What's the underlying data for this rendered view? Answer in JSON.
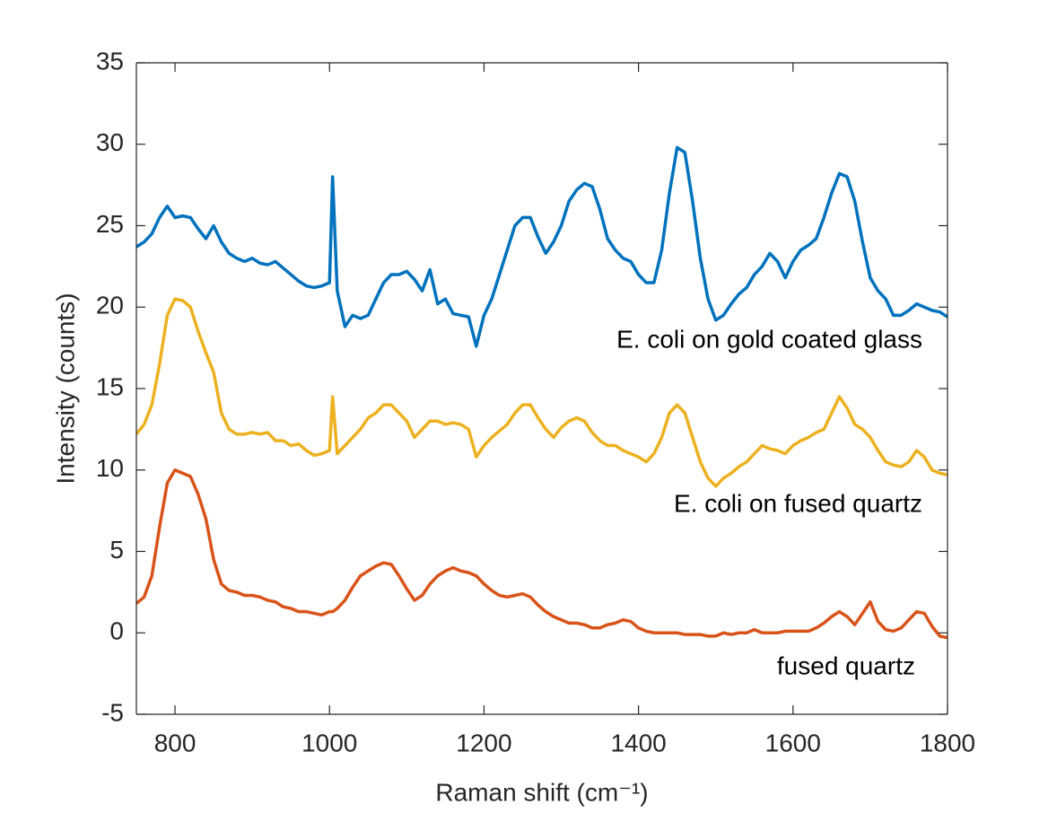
{
  "chart_data": {
    "type": "line",
    "xlabel": "Raman shift (cm⁻¹)",
    "ylabel": "Intensity (counts)",
    "annotations": [
      "E. coli on gold coated glass",
      "E. coli on fused quartz",
      "fused quartz"
    ],
    "xlim": [
      750,
      1800
    ],
    "xticks": [
      800,
      1000,
      1200,
      1400,
      1600,
      1800
    ],
    "ylim": [
      -5,
      35
    ],
    "yticks": [
      -5,
      0,
      5,
      10,
      15,
      20,
      25,
      30,
      35
    ],
    "box": true,
    "x": [
      750,
      760,
      770,
      780,
      790,
      800,
      810,
      820,
      830,
      840,
      850,
      860,
      870,
      880,
      890,
      900,
      910,
      920,
      930,
      940,
      950,
      960,
      970,
      980,
      990,
      1000,
      1004,
      1010,
      1020,
      1030,
      1040,
      1050,
      1060,
      1070,
      1080,
      1090,
      1100,
      1110,
      1120,
      1130,
      1140,
      1150,
      1160,
      1170,
      1180,
      1190,
      1200,
      1210,
      1220,
      1230,
      1240,
      1250,
      1260,
      1270,
      1280,
      1290,
      1300,
      1310,
      1320,
      1330,
      1340,
      1350,
      1360,
      1370,
      1380,
      1390,
      1400,
      1410,
      1420,
      1430,
      1440,
      1450,
      1460,
      1470,
      1480,
      1490,
      1500,
      1510,
      1520,
      1530,
      1540,
      1550,
      1560,
      1570,
      1580,
      1590,
      1600,
      1610,
      1620,
      1630,
      1640,
      1650,
      1660,
      1670,
      1680,
      1690,
      1700,
      1710,
      1720,
      1730,
      1740,
      1750,
      1760,
      1770,
      1780,
      1790,
      1800
    ],
    "series": [
      {
        "color": "#0072bd",
        "values": [
          23.7,
          24,
          24.5,
          25.5,
          26.2,
          25.5,
          25.6,
          25.5,
          24.8,
          24.2,
          25,
          24,
          23.3,
          23,
          22.8,
          23,
          22.7,
          22.6,
          22.8,
          22.4,
          22,
          21.6,
          21.3,
          21.2,
          21.3,
          21.5,
          28,
          21,
          18.8,
          19.5,
          19.3,
          19.5,
          20.5,
          21.5,
          22,
          22,
          22.2,
          21.7,
          21,
          22.3,
          20.2,
          20.5,
          19.6,
          19.5,
          19.4,
          17.6,
          19.5,
          20.5,
          22,
          23.5,
          25,
          25.5,
          25.5,
          24.3,
          23.3,
          24,
          25,
          26.5,
          27.2,
          27.6,
          27.4,
          26,
          24.2,
          23.5,
          23,
          22.8,
          22,
          21.5,
          21.5,
          23.5,
          27,
          29.8,
          29.5,
          26.5,
          23,
          20.5,
          19.2,
          19.5,
          20.2,
          20.8,
          21.2,
          22,
          22.5,
          23.3,
          22.8,
          21.8,
          22.8,
          23.5,
          23.8,
          24.2,
          25.5,
          27,
          28.2,
          28,
          26.5,
          24,
          21.8,
          21,
          20.5,
          19.5,
          19.5,
          19.8,
          20.2,
          20,
          19.8,
          19.7,
          19.4
        ]
      },
      {
        "color": "#edb120",
        "values": [
          12.2,
          12.8,
          14,
          16.5,
          19.5,
          20.5,
          20.4,
          20,
          18.5,
          17.2,
          16,
          13.5,
          12.5,
          12.2,
          12.2,
          12.3,
          12.2,
          12.3,
          11.8,
          11.8,
          11.5,
          11.6,
          11.2,
          10.9,
          11,
          11.2,
          14.5,
          11,
          11.5,
          12,
          12.5,
          13.2,
          13.5,
          14,
          14,
          13.5,
          13,
          12,
          12.5,
          13,
          13,
          12.8,
          12.9,
          12.8,
          12.5,
          10.8,
          11.5,
          12,
          12.4,
          12.8,
          13.5,
          14,
          14,
          13.2,
          12.5,
          12,
          12.6,
          13,
          13.2,
          13,
          12.3,
          11.8,
          11.5,
          11.5,
          11.2,
          11,
          10.8,
          10.5,
          11,
          12,
          13.5,
          14,
          13.5,
          12,
          10.5,
          9.5,
          9,
          9.5,
          9.8,
          10.2,
          10.5,
          11,
          11.5,
          11.3,
          11.2,
          11,
          11.5,
          11.8,
          12,
          12.3,
          12.5,
          13.5,
          14.5,
          13.8,
          12.8,
          12.5,
          12,
          11.2,
          10.5,
          10.3,
          10.2,
          10.5,
          11.2,
          10.8,
          10,
          9.8,
          9.7
        ]
      },
      {
        "color": "#d95319",
        "values": [
          1.8,
          2.2,
          3.5,
          6.5,
          9.2,
          10,
          9.8,
          9.6,
          8.5,
          7,
          4.5,
          3,
          2.6,
          2.5,
          2.3,
          2.3,
          2.2,
          2,
          1.9,
          1.6,
          1.5,
          1.3,
          1.3,
          1.2,
          1.1,
          1.3,
          1.3,
          1.5,
          2,
          2.8,
          3.5,
          3.8,
          4.1,
          4.3,
          4.2,
          3.5,
          2.7,
          2,
          2.3,
          3,
          3.5,
          3.8,
          4,
          3.8,
          3.7,
          3.5,
          3,
          2.6,
          2.3,
          2.2,
          2.3,
          2.4,
          2.2,
          1.7,
          1.3,
          1,
          0.8,
          0.6,
          0.6,
          0.5,
          0.3,
          0.3,
          0.5,
          0.6,
          0.8,
          0.7,
          0.3,
          0.1,
          0,
          0,
          0,
          0,
          -0.1,
          -0.1,
          -0.1,
          -0.2,
          -0.2,
          0,
          -0.1,
          0,
          0,
          0.2,
          0,
          0,
          0,
          0.1,
          0.1,
          0.1,
          0.1,
          0.3,
          0.6,
          1,
          1.3,
          1,
          0.5,
          1.2,
          1.9,
          0.7,
          0.2,
          0.1,
          0.3,
          0.8,
          1.3,
          1.2,
          0.4,
          -0.2,
          -0.3
        ]
      }
    ]
  }
}
